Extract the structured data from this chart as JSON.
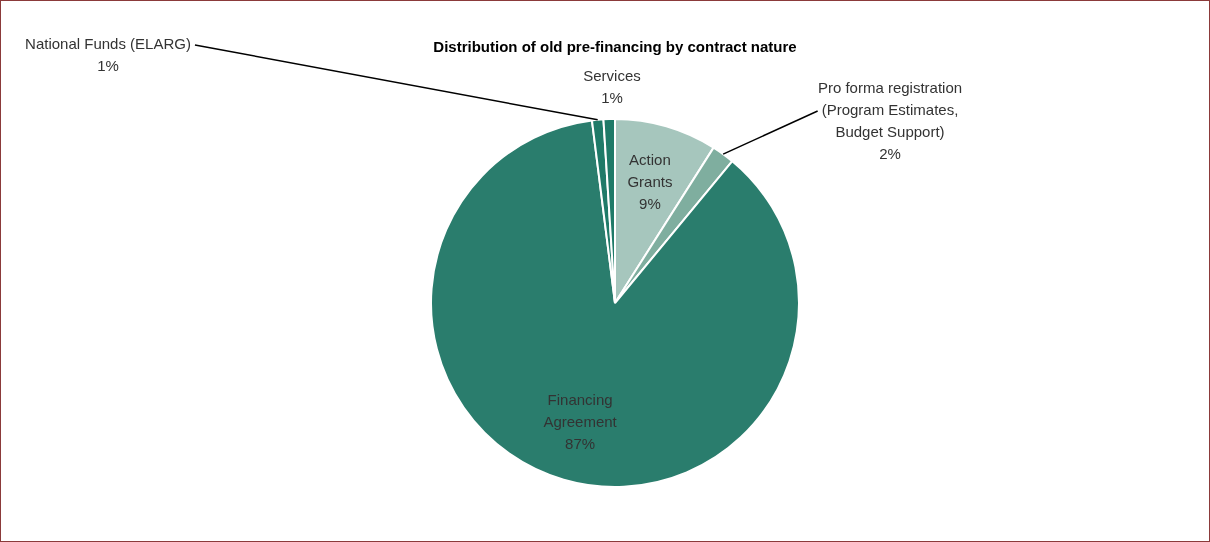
{
  "chart_data": {
    "type": "pie",
    "title": "Distribution of old pre-financing by contract nature",
    "categories": [
      "Action Grants",
      "Pro forma registration (Program Estimates, Budget Support)",
      "Financing Agreement",
      "National Funds (ELARG)",
      "Services"
    ],
    "values": [
      9,
      2,
      87,
      1,
      1
    ],
    "value_labels": [
      "9%",
      "2%",
      "87%",
      "1%",
      "1%"
    ],
    "colors": [
      "#a6c6bd",
      "#7fae9f",
      "#2a7d6d",
      "#1f7a68",
      "#1f7a68"
    ],
    "legend": false
  }
}
